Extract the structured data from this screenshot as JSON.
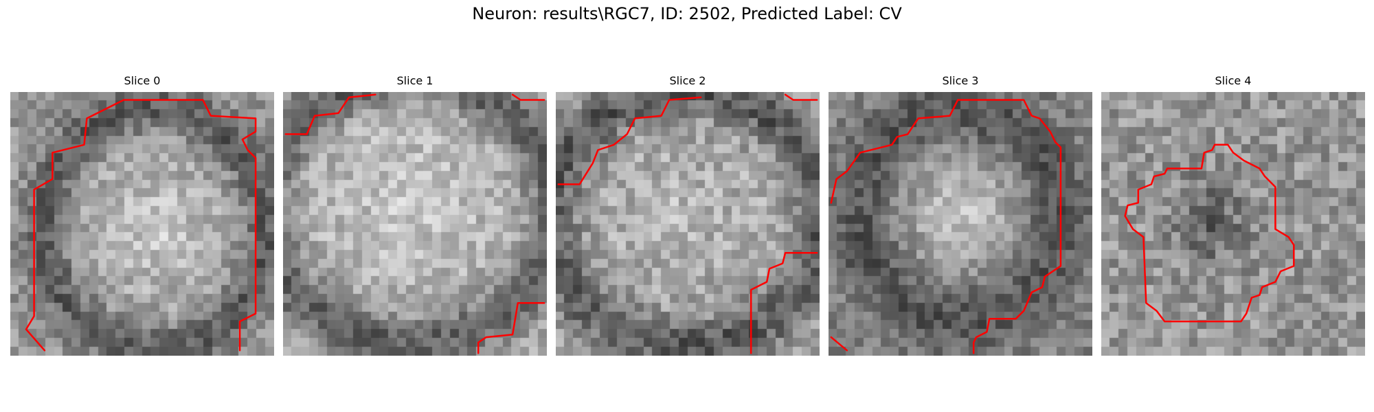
{
  "figure": {
    "title": "Neuron: results\\RGC7, ID: 2502, Predicted Label: CV",
    "contour_color": "#ff0000"
  },
  "panels": [
    {
      "title": "Slice 0",
      "contour": [
        [
          0.13,
          0.98
        ],
        [
          0.06,
          0.9
        ],
        [
          0.09,
          0.85
        ],
        [
          0.09,
          0.37
        ],
        [
          0.16,
          0.33
        ],
        [
          0.16,
          0.23
        ],
        [
          0.28,
          0.2
        ],
        [
          0.29,
          0.1
        ],
        [
          0.43,
          0.03
        ],
        [
          0.73,
          0.03
        ],
        [
          0.76,
          0.09
        ],
        [
          0.93,
          0.1
        ],
        [
          0.93,
          0.15
        ],
        [
          0.88,
          0.18
        ],
        [
          0.9,
          0.22
        ],
        [
          0.93,
          0.25
        ],
        [
          0.93,
          0.84
        ],
        [
          0.87,
          0.87
        ],
        [
          0.87,
          0.98
        ]
      ]
    },
    {
      "title": "Slice 1",
      "contour": [
        [
          [
            0.01,
            0.16
          ],
          [
            0.09,
            0.16
          ],
          [
            0.12,
            0.09
          ],
          [
            0.21,
            0.08
          ],
          [
            0.25,
            0.02
          ],
          [
            0.35,
            0.01
          ]
        ],
        [
          [
            0.87,
            0.01
          ],
          [
            0.9,
            0.03
          ],
          [
            0.99,
            0.03
          ]
        ],
        [
          [
            0.74,
            0.99
          ],
          [
            0.74,
            0.95
          ],
          [
            0.77,
            0.93
          ],
          [
            0.87,
            0.92
          ],
          [
            0.89,
            0.8
          ],
          [
            0.99,
            0.8
          ]
        ]
      ]
    },
    {
      "title": "Slice 2",
      "contour": [
        [
          [
            0.01,
            0.35
          ],
          [
            0.09,
            0.35
          ],
          [
            0.14,
            0.27
          ],
          [
            0.16,
            0.22
          ],
          [
            0.22,
            0.2
          ],
          [
            0.27,
            0.16
          ],
          [
            0.3,
            0.1
          ],
          [
            0.4,
            0.09
          ],
          [
            0.43,
            0.03
          ],
          [
            0.55,
            0.02
          ]
        ],
        [
          [
            0.87,
            0.01
          ],
          [
            0.9,
            0.03
          ],
          [
            0.99,
            0.03
          ]
        ],
        [
          [
            0.74,
            0.99
          ],
          [
            0.74,
            0.75
          ],
          [
            0.8,
            0.72
          ],
          [
            0.81,
            0.67
          ],
          [
            0.86,
            0.65
          ],
          [
            0.87,
            0.61
          ],
          [
            0.99,
            0.61
          ]
        ]
      ]
    },
    {
      "title": "Slice 3",
      "contour": [
        [
          [
            0.01,
            0.42
          ],
          [
            0.03,
            0.33
          ],
          [
            0.07,
            0.3
          ],
          [
            0.12,
            0.23
          ],
          [
            0.24,
            0.2
          ],
          [
            0.26,
            0.17
          ],
          [
            0.3,
            0.16
          ],
          [
            0.34,
            0.1
          ],
          [
            0.46,
            0.09
          ],
          [
            0.49,
            0.03
          ],
          [
            0.74,
            0.03
          ],
          [
            0.77,
            0.09
          ],
          [
            0.8,
            0.1
          ],
          [
            0.84,
            0.15
          ],
          [
            0.86,
            0.19
          ],
          [
            0.88,
            0.21
          ],
          [
            0.88,
            0.66
          ],
          [
            0.82,
            0.7
          ],
          [
            0.81,
            0.74
          ],
          [
            0.77,
            0.76
          ],
          [
            0.74,
            0.83
          ],
          [
            0.71,
            0.86
          ],
          [
            0.61,
            0.86
          ],
          [
            0.6,
            0.91
          ],
          [
            0.56,
            0.93
          ],
          [
            0.55,
            0.95
          ],
          [
            0.55,
            0.99
          ]
        ],
        [
          [
            0.01,
            0.93
          ],
          [
            0.07,
            0.98
          ]
        ]
      ]
    },
    {
      "title": "Slice 4",
      "contour": [
        [
          [
            0.38,
            0.29
          ],
          [
            0.39,
            0.23
          ],
          [
            0.42,
            0.22
          ],
          [
            0.43,
            0.2
          ],
          [
            0.48,
            0.2
          ],
          [
            0.5,
            0.23
          ],
          [
            0.54,
            0.26
          ],
          [
            0.6,
            0.29
          ],
          [
            0.62,
            0.32
          ],
          [
            0.66,
            0.36
          ],
          [
            0.66,
            0.52
          ],
          [
            0.71,
            0.55
          ],
          [
            0.73,
            0.58
          ],
          [
            0.73,
            0.66
          ],
          [
            0.68,
            0.68
          ],
          [
            0.66,
            0.72
          ],
          [
            0.61,
            0.74
          ],
          [
            0.6,
            0.77
          ],
          [
            0.57,
            0.78
          ],
          [
            0.55,
            0.84
          ],
          [
            0.53,
            0.87
          ],
          [
            0.24,
            0.87
          ],
          [
            0.21,
            0.83
          ],
          [
            0.17,
            0.8
          ],
          [
            0.16,
            0.55
          ],
          [
            0.12,
            0.52
          ],
          [
            0.09,
            0.47
          ],
          [
            0.1,
            0.43
          ],
          [
            0.14,
            0.42
          ],
          [
            0.14,
            0.37
          ],
          [
            0.19,
            0.35
          ],
          [
            0.2,
            0.32
          ],
          [
            0.24,
            0.31
          ],
          [
            0.25,
            0.29
          ],
          [
            0.38,
            0.29
          ]
        ]
      ]
    }
  ]
}
